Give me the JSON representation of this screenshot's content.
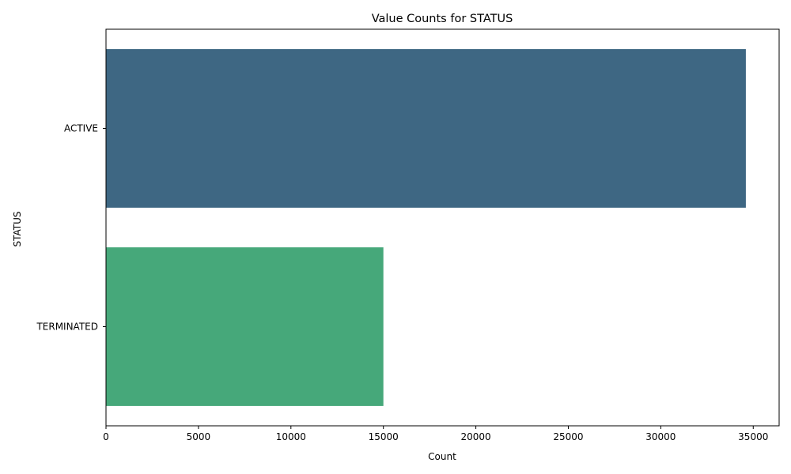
{
  "chart_data": {
    "type": "bar",
    "orientation": "horizontal",
    "title": "Value Counts for STATUS",
    "xlabel": "Count",
    "ylabel": "STATUS",
    "categories": [
      "ACTIVE",
      "TERMINATED"
    ],
    "values": [
      34600,
      15000
    ],
    "colors": [
      "#3e6783",
      "#46a87a"
    ],
    "xlim": [
      0,
      36400
    ],
    "xticks": [
      0,
      5000,
      10000,
      15000,
      20000,
      25000,
      30000,
      35000
    ],
    "xtick_labels": [
      "0",
      "5000",
      "10000",
      "15000",
      "20000",
      "25000",
      "30000",
      "35000"
    ],
    "grid": false,
    "legend": "none"
  }
}
